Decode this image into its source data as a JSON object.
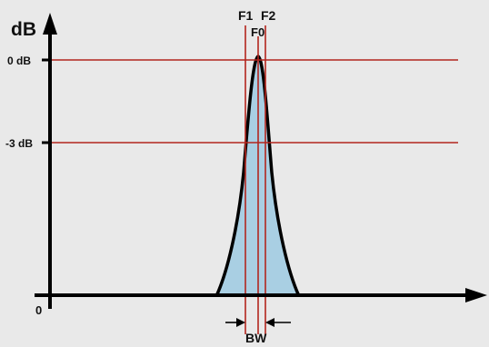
{
  "diagram": {
    "y_axis_label": "dB",
    "origin_label": "0",
    "levels": [
      {
        "label": "0 dB",
        "value_db": 0
      },
      {
        "label": "-3 dB",
        "value_db": -3
      }
    ],
    "markers": {
      "f0": "F0",
      "f1": "F1",
      "f2": "F2"
    },
    "bandwidth_label": "BW",
    "colors": {
      "background": "#e9e9e9",
      "axis": "#000000",
      "level_lines": "#b3261e",
      "marker_lines": "#b3261e",
      "curve_fill": "#a9cfe3",
      "curve_outline": "#000000"
    }
  }
}
